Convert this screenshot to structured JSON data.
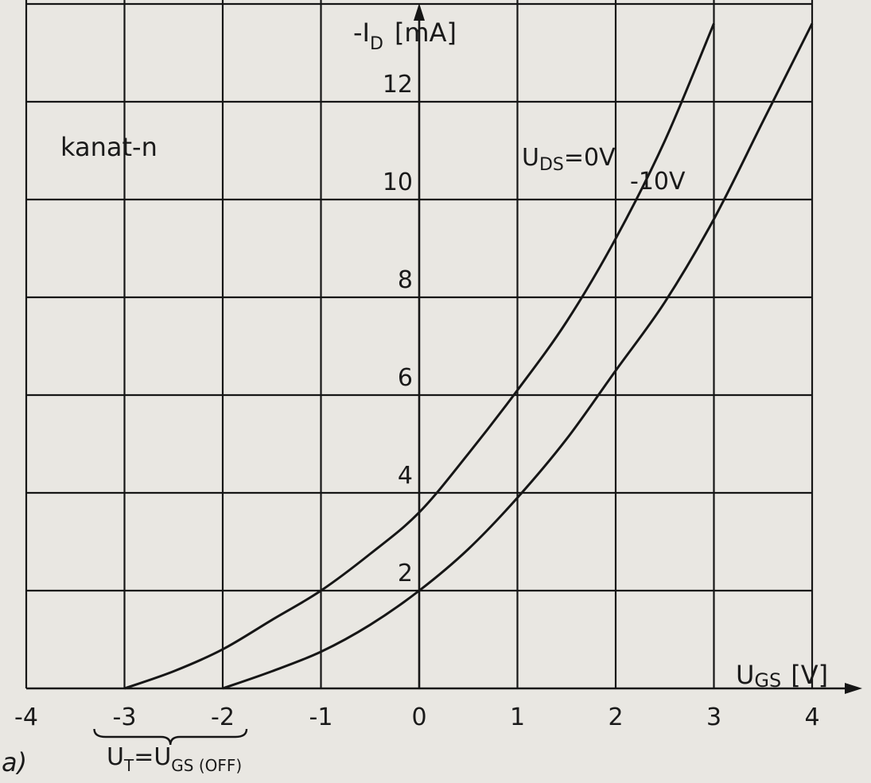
{
  "chart_data": {
    "type": "line",
    "title": "",
    "xlabel_main": "U",
    "xlabel_sub": "GS",
    "xlabel_unit": "[V]",
    "ylabel_prefix": "-I",
    "ylabel_sub": "D",
    "ylabel_unit": "[mA]",
    "xlim": [
      -4,
      4
    ],
    "ylim": [
      0,
      14
    ],
    "x_ticks": [
      -4,
      -3,
      -2,
      -1,
      0,
      1,
      2,
      3,
      4
    ],
    "x_tick_labels": [
      "-4",
      "-3",
      "-2",
      "-1",
      "0",
      "1",
      "2",
      "3",
      "4"
    ],
    "y_ticks": [
      2,
      4,
      6,
      8,
      10,
      12
    ],
    "y_tick_labels": [
      "2",
      "4",
      "6",
      "8",
      "10",
      "12"
    ],
    "grid": true,
    "series": [
      {
        "name": "U_DS=0V",
        "label_main": "U",
        "label_sub": "DS",
        "label_rest": "=0V",
        "x": [
          -3,
          -2.5,
          -2,
          -1.5,
          -1,
          -0.5,
          0,
          0.5,
          1,
          1.5,
          2,
          2.5,
          3
        ],
        "y": [
          0,
          0.35,
          0.8,
          1.4,
          2.0,
          2.75,
          3.6,
          4.8,
          6.1,
          7.5,
          9.2,
          11.2,
          13.6
        ]
      },
      {
        "name": "-10V",
        "label_main": "-10V",
        "x": [
          -2,
          -1.5,
          -1,
          -0.5,
          0,
          0.5,
          1,
          1.5,
          2,
          2.5,
          3,
          3.5,
          4
        ],
        "y": [
          0,
          0.35,
          0.75,
          1.3,
          2.0,
          2.85,
          3.9,
          5.1,
          6.5,
          7.9,
          9.6,
          11.6,
          13.6
        ]
      }
    ],
    "annotations": {
      "region_label": "kanat-n",
      "panel_label": "a)",
      "threshold_label_main": "U",
      "threshold_label_sub1": "T",
      "threshold_label_mid": "=U",
      "threshold_label_sub2": "GS (OFF)",
      "threshold_bracket_range": [
        -3,
        -2
      ]
    }
  }
}
